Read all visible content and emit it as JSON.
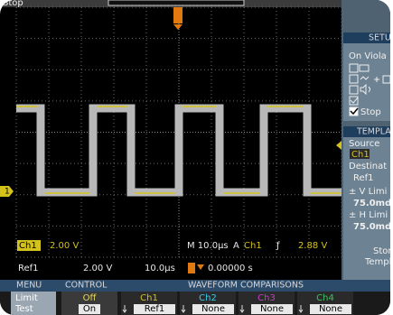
{
  "status": "Stop",
  "setup": {
    "title": "SETU",
    "on_violation": "On Viola",
    "stop": "Stop"
  },
  "template": {
    "title": "TEMPLA",
    "source_label": "Source",
    "source": "Ch1",
    "destination_label": "Destinat",
    "destination": "Ref1",
    "v_limit_label": "± V Limi",
    "v_limit": "75.0md",
    "h_limit_label": "± H Limi",
    "h_limit": "75.0md",
    "store": [
      "Store",
      "Templ"
    ]
  },
  "markers": {
    "channel": "1"
  },
  "readout": {
    "channel": "Ch1",
    "volts_div": "2.00 V",
    "timebase": "M 10.0µs",
    "trigger_mode": "A",
    "trigger_source": "Ch1",
    "trigger_slope": "ƒ",
    "trigger_level": "2.88 V",
    "ref": "Ref1",
    "ref_volts": "2.00 V",
    "ref_time": "10.0µs",
    "trigger_position": "0.00000 s"
  },
  "menu": {
    "header": "MENU",
    "label": [
      "Limit",
      "Test"
    ]
  },
  "control": {
    "header": "CONTROL",
    "off": "Off",
    "on": "On"
  },
  "comparisons": {
    "header": "WAVEFORM COMPARISONS",
    "channels": [
      {
        "name": "Ch1",
        "ref": "Ref1"
      },
      {
        "name": "Ch2",
        "ref": "None"
      },
      {
        "name": "Ch3",
        "ref": "None"
      },
      {
        "name": "Ch4",
        "ref": "None"
      }
    ]
  }
}
